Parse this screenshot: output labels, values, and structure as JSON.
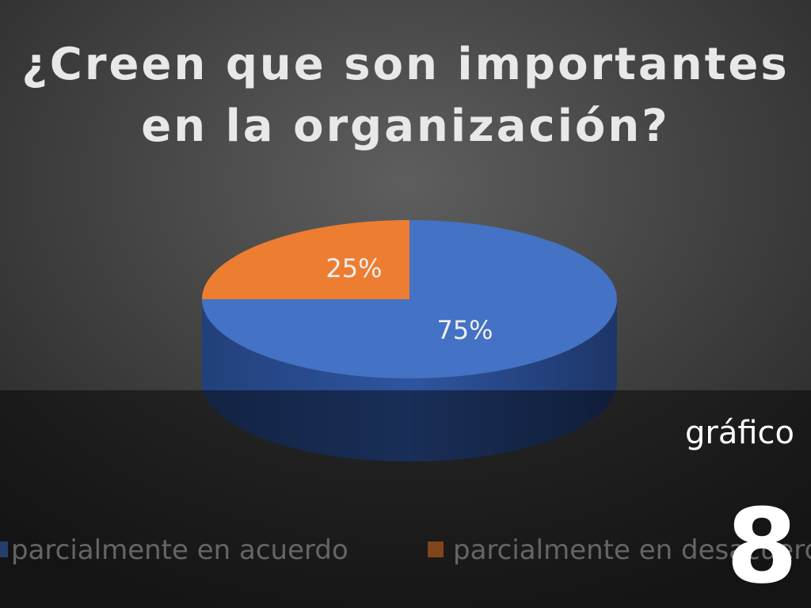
{
  "chart_data": {
    "type": "pie",
    "title": [
      "¿Creen que son importantes",
      "en la organización?"
    ],
    "categories": [
      "parcialmente en acuerdo",
      "parcialmente en desacuerdo"
    ],
    "values": [
      75,
      25
    ],
    "value_labels": [
      "75%",
      "25%"
    ],
    "colors": [
      "#4472c4",
      "#ed7d31"
    ],
    "legend": "bottom"
  },
  "slide": {
    "caption": "gráfico",
    "number": "8"
  }
}
